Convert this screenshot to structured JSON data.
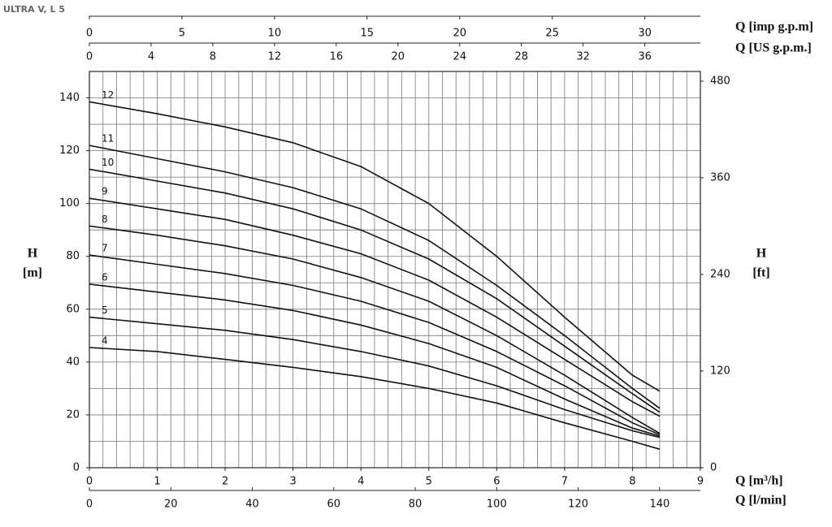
{
  "chart_data": {
    "type": "line",
    "title": "ULTRA V, L 5",
    "ylabel": "H",
    "yunit": "[m]",
    "y2label": "H",
    "y2unit": "[ft]",
    "xlabel": "Q [m³/h]",
    "xlim": [
      0,
      9
    ],
    "xticks": [
      0,
      1,
      2,
      3,
      4,
      5,
      6,
      7,
      8,
      9
    ],
    "ylim": [
      0,
      150
    ],
    "yticks": [
      0,
      20,
      40,
      60,
      80,
      100,
      120,
      140
    ],
    "y2lim": [
      0,
      492
    ],
    "y2ticks": [
      0,
      120,
      240,
      360,
      480
    ],
    "x_grid_step": 0.2,
    "y_grid_step": 10,
    "grid": true,
    "bottom_axis2": {
      "label": "Q [l/min]",
      "lim": [
        0,
        150
      ],
      "ticks": [
        0,
        20,
        40,
        60,
        80,
        100,
        120,
        140
      ]
    },
    "top_axes": [
      {
        "label": "Q [imp g.p.m]",
        "lim": [
          0,
          33
        ],
        "ticks": [
          0,
          5,
          10,
          15,
          20,
          25,
          30
        ]
      },
      {
        "label": "Q [US g.p.m.]",
        "lim": [
          0,
          39.6
        ],
        "ticks": [
          0,
          4,
          8,
          12,
          16,
          20,
          24,
          28,
          32,
          36
        ]
      }
    ],
    "x": [
      0,
      1,
      2,
      3,
      4,
      5,
      6,
      7,
      8,
      8.4
    ],
    "series": [
      {
        "name": "12",
        "color": "#111111",
        "values": [
          138.5,
          134,
          129,
          123,
          114,
          100,
          80,
          57,
          35,
          29
        ]
      },
      {
        "name": "11",
        "color": "#111111",
        "values": [
          122,
          117,
          112,
          106,
          98,
          86,
          69,
          50,
          30,
          22.5
        ]
      },
      {
        "name": "10",
        "color": "#111111",
        "values": [
          113,
          108.5,
          104,
          98,
          90,
          79,
          64,
          46,
          28,
          21
        ]
      },
      {
        "name": "9",
        "color": "#111111",
        "values": [
          102,
          98,
          94,
          88,
          81,
          71,
          57,
          41,
          25,
          19.5
        ]
      },
      {
        "name": "8",
        "color": "#111111",
        "values": [
          91.5,
          88,
          84,
          79,
          72,
          63,
          50,
          35,
          19,
          13
        ]
      },
      {
        "name": "7",
        "color": "#111111",
        "values": [
          80.5,
          77,
          73.5,
          69,
          63,
          55,
          44,
          31,
          17,
          12.5
        ]
      },
      {
        "name": "6",
        "color": "#111111",
        "values": [
          69.5,
          66.5,
          63.5,
          59.5,
          54,
          47,
          38,
          26,
          15,
          12
        ]
      },
      {
        "name": "5",
        "color": "#111111",
        "values": [
          57,
          54.5,
          52,
          48.5,
          44,
          38.5,
          31,
          22,
          14,
          11.5
        ]
      },
      {
        "name": "4",
        "color": "#111111",
        "values": [
          45.5,
          44,
          41,
          38,
          34.5,
          30,
          24.5,
          17,
          10,
          7
        ]
      }
    ]
  }
}
